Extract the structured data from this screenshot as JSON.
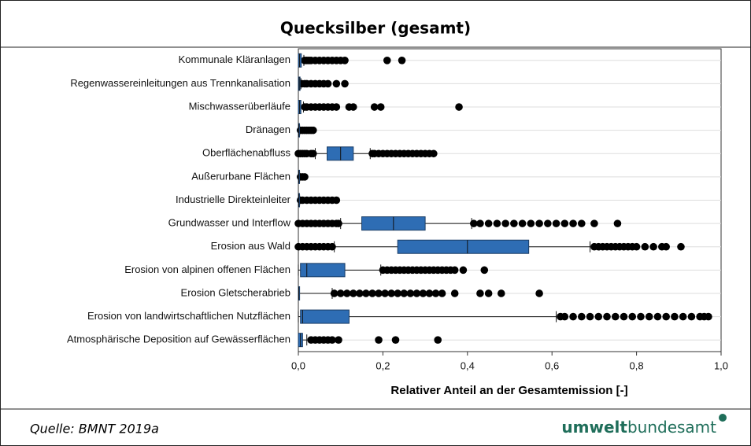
{
  "chart_data": {
    "type": "boxplot",
    "title": "Quecksilber (gesamt)",
    "xlabel": "Relativer Anteil an der Gesamtemission [-]",
    "color": "#2e6db4",
    "categories": [
      "Kommunale Kläranlagen",
      "Regenwassereinleitungen aus Trennkanalisation",
      "Mischwasserüberläufe",
      "Dränagen",
      "Oberflächenabfluss",
      "Außerurbane Flächen",
      "Industrielle Direkteinleiter",
      "Grundwasser und Interflow",
      "Erosion aus Wald",
      "Erosion von alpinen offenen Flächen",
      "Erosion Gletscherabrieb",
      "Erosion von landwirtschaftlichen Nutzflächen",
      "Atmosphärische Deposition auf Gewässerflächen"
    ],
    "boxes": [
      {
        "min": 0,
        "q1": 0,
        "median": 0.003,
        "q3": 0.007,
        "max": 0.013,
        "outliers": [
          0.015,
          0.02,
          0.025,
          0.03,
          0.04,
          0.05,
          0.06,
          0.07,
          0.08,
          0.09,
          0.1,
          0.11,
          0.21,
          0.245
        ]
      },
      {
        "min": 0,
        "q1": 0,
        "median": 0.002,
        "q3": 0.004,
        "max": 0.006,
        "outliers": [
          0.008,
          0.015,
          0.02,
          0.03,
          0.04,
          0.05,
          0.06,
          0.07,
          0.09,
          0.11
        ]
      },
      {
        "min": 0,
        "q1": 0,
        "median": 0.003,
        "q3": 0.006,
        "max": 0.012,
        "outliers": [
          0.015,
          0.02,
          0.03,
          0.04,
          0.05,
          0.06,
          0.07,
          0.08,
          0.09,
          0.12,
          0.13,
          0.18,
          0.195,
          0.38
        ]
      },
      {
        "min": 0,
        "q1": 0,
        "median": 0.001,
        "q3": 0.002,
        "max": 0.003,
        "outliers": [
          0.005,
          0.01,
          0.015,
          0.02,
          0.025,
          0.03,
          0.035
        ]
      },
      {
        "min": 0.04,
        "q1": 0.068,
        "median": 0.1,
        "q3": 0.13,
        "max": 0.17,
        "outliers": [
          0,
          0.005,
          0.01,
          0.015,
          0.02,
          0.03,
          0.035,
          0.175,
          0.18,
          0.19,
          0.2,
          0.21,
          0.22,
          0.23,
          0.24,
          0.25,
          0.26,
          0.27,
          0.28,
          0.29,
          0.3,
          0.31,
          0.32
        ]
      },
      {
        "min": 0,
        "q1": 0,
        "median": 0.001,
        "q3": 0.002,
        "max": 0.003,
        "outliers": [
          0.005,
          0.01,
          0.015
        ]
      },
      {
        "min": 0,
        "q1": 0,
        "median": 0.001,
        "q3": 0.002,
        "max": 0.003,
        "outliers": [
          0.005,
          0.01,
          0.02,
          0.03,
          0.04,
          0.05,
          0.06,
          0.07,
          0.08,
          0.09
        ]
      },
      {
        "min": 0.1,
        "q1": 0.15,
        "median": 0.225,
        "q3": 0.3,
        "max": 0.41,
        "outliers": [
          0,
          0.01,
          0.02,
          0.03,
          0.04,
          0.05,
          0.06,
          0.07,
          0.08,
          0.09,
          0.095,
          0.415,
          0.43,
          0.45,
          0.47,
          0.49,
          0.51,
          0.53,
          0.55,
          0.57,
          0.59,
          0.61,
          0.63,
          0.65,
          0.67,
          0.7,
          0.755
        ]
      },
      {
        "min": 0.085,
        "q1": 0.235,
        "median": 0.4,
        "q3": 0.545,
        "max": 0.69,
        "outliers": [
          0,
          0.01,
          0.02,
          0.03,
          0.04,
          0.05,
          0.06,
          0.07,
          0.08,
          0.7,
          0.71,
          0.72,
          0.73,
          0.74,
          0.75,
          0.76,
          0.77,
          0.78,
          0.79,
          0.8,
          0.82,
          0.84,
          0.86,
          0.87,
          0.905
        ]
      },
      {
        "min": 0,
        "q1": 0.005,
        "median": 0.02,
        "q3": 0.11,
        "max": 0.195,
        "outliers": [
          0.2,
          0.21,
          0.22,
          0.23,
          0.24,
          0.25,
          0.26,
          0.27,
          0.28,
          0.29,
          0.3,
          0.31,
          0.32,
          0.33,
          0.34,
          0.35,
          0.36,
          0.37,
          0.39,
          0.44
        ]
      },
      {
        "min": 0,
        "q1": 0,
        "median": 0.001,
        "q3": 0.003,
        "max": 0.08,
        "outliers": [
          0.085,
          0.1,
          0.115,
          0.13,
          0.145,
          0.16,
          0.175,
          0.19,
          0.205,
          0.22,
          0.235,
          0.25,
          0.265,
          0.28,
          0.295,
          0.31,
          0.325,
          0.34,
          0.37,
          0.43,
          0.45,
          0.48,
          0.57
        ]
      },
      {
        "min": 0,
        "q1": 0.005,
        "median": 0.01,
        "q3": 0.12,
        "max": 0.61,
        "outliers": [
          0.62,
          0.63,
          0.65,
          0.67,
          0.69,
          0.71,
          0.73,
          0.75,
          0.77,
          0.79,
          0.81,
          0.83,
          0.85,
          0.87,
          0.89,
          0.91,
          0.93,
          0.95,
          0.96,
          0.97
        ]
      },
      {
        "min": 0,
        "q1": 0,
        "median": 0.005,
        "q3": 0.01,
        "max": 0.02,
        "outliers": [
          0.03,
          0.04,
          0.05,
          0.06,
          0.07,
          0.08,
          0.095,
          0.19,
          0.23,
          0.33
        ]
      }
    ],
    "xlim": [
      0,
      1
    ],
    "xticks": [
      {
        "value": 0,
        "label": "0,0"
      },
      {
        "value": 0.2,
        "label": "0,2"
      },
      {
        "value": 0.4,
        "label": "0,4"
      },
      {
        "value": 0.6,
        "label": "0,6"
      },
      {
        "value": 0.8,
        "label": "0,8"
      },
      {
        "value": 1,
        "label": "1,0"
      }
    ]
  },
  "footer": {
    "source": "Quelle: BMNT 2019a",
    "logo_bold": "umwelt",
    "logo_light": "bundesamt"
  }
}
